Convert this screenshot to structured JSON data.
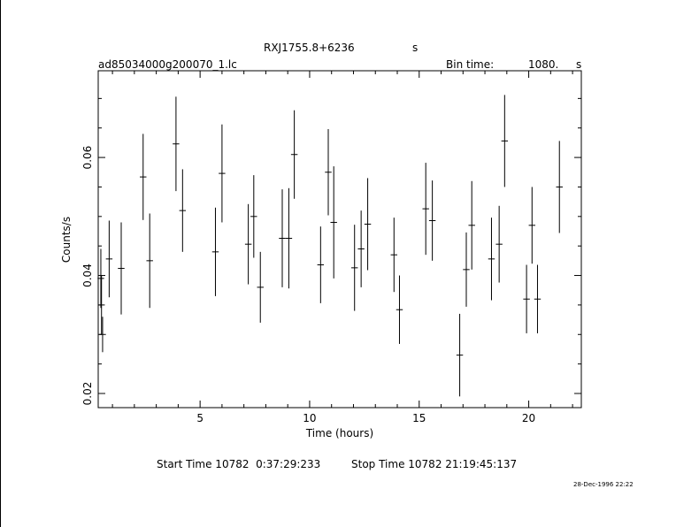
{
  "header": {
    "source_name": "RXJ1755.8+6236",
    "source_units": "s",
    "file_name": "ad85034000g200070_1.lc",
    "bin_time_label": "Bin time:",
    "bin_time_value": "1080.",
    "bin_time_units": "s"
  },
  "footer": {
    "start_time": "Start Time 10782  0:37:29:233",
    "stop_time": "Stop Time 10782 21:19:45:137",
    "timestamp": "28-Dec-1996 22:22"
  },
  "chart_data": {
    "type": "scatter",
    "xlabel": "Time (hours)",
    "ylabel": "Counts/s",
    "xlim": [
      0.35,
      22.4
    ],
    "ylim": [
      0.0176,
      0.0747
    ],
    "x_ticks": [
      5,
      10,
      15,
      20
    ],
    "y_ticks": [
      0.02,
      0.04,
      0.06
    ],
    "y_tick_labels": [
      "0.02",
      "0.04",
      "0.06"
    ],
    "grid": false,
    "error_bars": true,
    "series": [
      {
        "points": [
          {
            "x": 0.47,
            "y": 0.0395,
            "xerr": 0.15,
            "yerr": 0.005
          },
          {
            "x": 0.5,
            "y": 0.035,
            "xerr": 0.15,
            "yerr": 0.005
          },
          {
            "x": 0.55,
            "y": 0.03,
            "xerr": 0.15,
            "yerr": 0.003
          },
          {
            "x": 0.85,
            "y": 0.0428,
            "xerr": 0.15,
            "yerr": 0.0065
          },
          {
            "x": 1.4,
            "y": 0.0412,
            "xerr": 0.15,
            "yerr": 0.0078
          },
          {
            "x": 2.4,
            "y": 0.0567,
            "xerr": 0.15,
            "yerr": 0.0073
          },
          {
            "x": 2.7,
            "y": 0.0425,
            "xerr": 0.15,
            "yerr": 0.008
          },
          {
            "x": 3.9,
            "y": 0.0623,
            "xerr": 0.15,
            "yerr": 0.008
          },
          {
            "x": 4.2,
            "y": 0.051,
            "xerr": 0.15,
            "yerr": 0.007
          },
          {
            "x": 5.7,
            "y": 0.044,
            "xerr": 0.15,
            "yerr": 0.0075
          },
          {
            "x": 6.0,
            "y": 0.0573,
            "xerr": 0.15,
            "yerr": 0.0083
          },
          {
            "x": 7.2,
            "y": 0.0453,
            "xerr": 0.15,
            "yerr": 0.0068
          },
          {
            "x": 7.45,
            "y": 0.05,
            "xerr": 0.15,
            "yerr": 0.007
          },
          {
            "x": 7.75,
            "y": 0.038,
            "xerr": 0.15,
            "yerr": 0.006
          },
          {
            "x": 8.75,
            "y": 0.0463,
            "xerr": 0.15,
            "yerr": 0.0083
          },
          {
            "x": 9.05,
            "y": 0.0463,
            "xerr": 0.15,
            "yerr": 0.0085
          },
          {
            "x": 9.3,
            "y": 0.0605,
            "xerr": 0.15,
            "yerr": 0.0075
          },
          {
            "x": 10.5,
            "y": 0.0418,
            "xerr": 0.15,
            "yerr": 0.0065
          },
          {
            "x": 10.85,
            "y": 0.0575,
            "xerr": 0.15,
            "yerr": 0.0073
          },
          {
            "x": 11.1,
            "y": 0.049,
            "xerr": 0.15,
            "yerr": 0.0095
          },
          {
            "x": 12.05,
            "y": 0.0413,
            "xerr": 0.15,
            "yerr": 0.0073
          },
          {
            "x": 12.35,
            "y": 0.0445,
            "xerr": 0.15,
            "yerr": 0.0065
          },
          {
            "x": 12.65,
            "y": 0.0487,
            "xerr": 0.15,
            "yerr": 0.0078
          },
          {
            "x": 13.85,
            "y": 0.0435,
            "xerr": 0.15,
            "yerr": 0.0063
          },
          {
            "x": 14.1,
            "y": 0.0342,
            "xerr": 0.15,
            "yerr": 0.0058
          },
          {
            "x": 15.3,
            "y": 0.0513,
            "xerr": 0.15,
            "yerr": 0.0078
          },
          {
            "x": 15.6,
            "y": 0.0493,
            "xerr": 0.15,
            "yerr": 0.0068
          },
          {
            "x": 16.85,
            "y": 0.0265,
            "xerr": 0.15,
            "yerr": 0.007
          },
          {
            "x": 17.15,
            "y": 0.041,
            "xerr": 0.15,
            "yerr": 0.0063
          },
          {
            "x": 17.4,
            "y": 0.0485,
            "xerr": 0.15,
            "yerr": 0.0075
          },
          {
            "x": 18.3,
            "y": 0.0428,
            "xerr": 0.15,
            "yerr": 0.007
          },
          {
            "x": 18.65,
            "y": 0.0453,
            "xerr": 0.15,
            "yerr": 0.0065
          },
          {
            "x": 18.9,
            "y": 0.0628,
            "xerr": 0.15,
            "yerr": 0.0078
          },
          {
            "x": 19.9,
            "y": 0.036,
            "xerr": 0.15,
            "yerr": 0.0058
          },
          {
            "x": 20.15,
            "y": 0.0485,
            "xerr": 0.15,
            "yerr": 0.0065
          },
          {
            "x": 20.4,
            "y": 0.036,
            "xerr": 0.15,
            "yerr": 0.0058
          },
          {
            "x": 21.4,
            "y": 0.055,
            "xerr": 0.15,
            "yerr": 0.0078
          }
        ]
      }
    ]
  }
}
